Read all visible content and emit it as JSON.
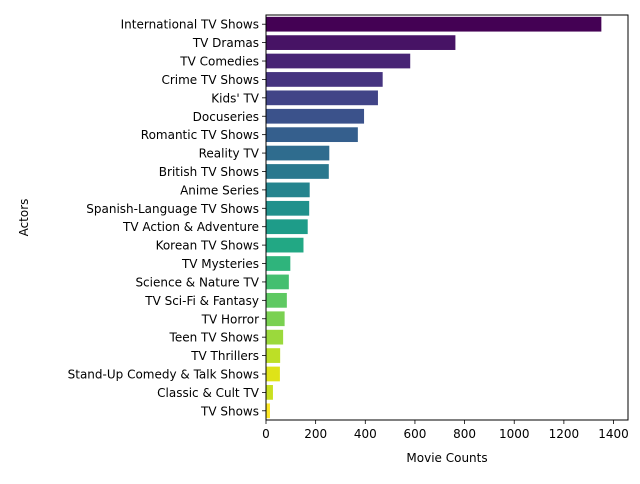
{
  "chart_data": {
    "type": "bar",
    "orientation": "horizontal",
    "xlabel": "Movie Counts",
    "ylabel": "Actors",
    "xlim": [
      0,
      1400
    ],
    "xticks": [
      0,
      200,
      400,
      600,
      800,
      1000,
      1200,
      1400
    ],
    "grid": false,
    "palette": "viridis",
    "categories": [
      "International TV Shows",
      "TV Dramas",
      "TV Comedies",
      "Crime TV Shows",
      "Kids' TV",
      "Docuseries",
      "Romantic TV Shows",
      "Reality TV",
      "British TV Shows",
      "Anime Series",
      "Spanish-Language TV Shows",
      "TV Action & Adventure",
      "Korean TV Shows",
      "TV Mysteries",
      "Science & Nature TV",
      "TV Sci-Fi & Fantasy",
      "TV Horror",
      "Teen TV Shows",
      "TV Thrillers",
      "Stand-Up Comedy & Talk Shows",
      "Classic & Cult TV",
      "TV Shows"
    ],
    "values": [
      1351,
      763,
      581,
      470,
      451,
      395,
      370,
      255,
      253,
      176,
      174,
      168,
      151,
      98,
      92,
      84,
      75,
      69,
      57,
      56,
      28,
      16
    ],
    "colors": [
      "#440154",
      "#471365",
      "#482475",
      "#463480",
      "#414487",
      "#3b528b",
      "#355f8d",
      "#2f6c8e",
      "#2a788e",
      "#25848e",
      "#21918c",
      "#1e9c89",
      "#22a884",
      "#2fb47c",
      "#44bf70",
      "#5ec962",
      "#7ad151",
      "#9bd93c",
      "#bddf26",
      "#dfe318",
      "#c9e020",
      "#fde725"
    ]
  }
}
